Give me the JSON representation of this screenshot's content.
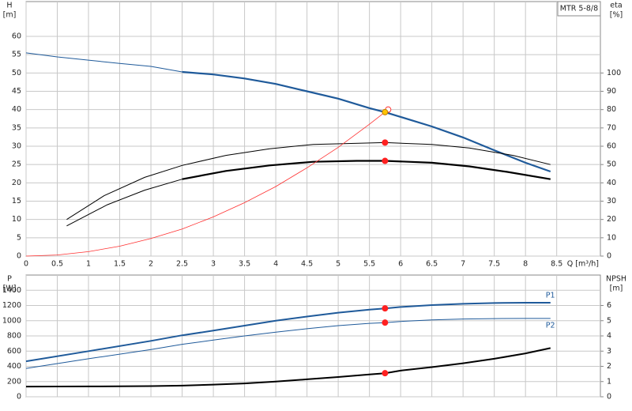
{
  "chart_data": [
    {
      "type": "line",
      "ylabel": [
        "H",
        "[m]"
      ],
      "y2label": [
        "eta",
        "[%]"
      ],
      "xlabel": "Q [m³/h]",
      "legend_title": "MTR 5-8/8",
      "xlim": [
        0,
        9.2
      ],
      "xticks": [
        0,
        0.5,
        1.0,
        1.5,
        2.0,
        2.5,
        3.0,
        3.5,
        4.0,
        4.5,
        5.0,
        5.5,
        6.0,
        6.5,
        7.0,
        7.5,
        8.0,
        8.5
      ],
      "ylim": [
        0,
        69.5
      ],
      "yticks": [
        0,
        5,
        10,
        15,
        20,
        25,
        30,
        35,
        40,
        45,
        50,
        55,
        60
      ],
      "y2lim": [
        0,
        139
      ],
      "y2ticks": [
        0,
        10,
        20,
        30,
        40,
        50,
        60,
        70,
        80,
        90,
        100
      ],
      "grid": true,
      "series": [
        {
          "color": "#1f5a9a",
          "width": 1,
          "x": [
            0,
            0.5,
            1,
            1.5,
            2,
            2.5
          ],
          "values": [
            55.5,
            54.4,
            53.5,
            52.6,
            51.8,
            50.3
          ]
        },
        {
          "color": "#1f5a9a",
          "width": 2.2,
          "x": [
            2.5,
            3,
            3.5,
            4,
            4.5,
            5,
            5.5,
            5.75,
            6,
            6.5,
            7,
            7.5,
            8,
            8.4
          ],
          "values": [
            50.3,
            49.6,
            48.5,
            47,
            45,
            43,
            40.4,
            39.3,
            38,
            35.4,
            32.4,
            28.9,
            25.5,
            23.1
          ]
        },
        {
          "color": "#000000",
          "width": 1,
          "axis": "y2",
          "x": [
            0.65,
            1.25,
            1.9,
            2.5,
            3.2,
            3.9,
            4.6,
            5.75,
            6.5,
            7.1,
            7.8,
            8.4
          ],
          "values": [
            20,
            33,
            43,
            49.5,
            55,
            58.6,
            61,
            62,
            61,
            59,
            55,
            50
          ]
        },
        {
          "color": "#000000",
          "width": 1,
          "axis": "y2",
          "x": [
            0.65,
            1.3,
            1.9,
            2.5
          ],
          "values": [
            16.5,
            28,
            36,
            42
          ]
        },
        {
          "color": "#000000",
          "width": 2.2,
          "axis": "y2",
          "x": [
            2.5,
            3.2,
            3.9,
            4.6,
            5.3,
            5.75,
            6.5,
            7.1,
            7.7,
            8.4
          ],
          "values": [
            42,
            46.5,
            49.5,
            51.5,
            52,
            52,
            51,
            49,
            46,
            42
          ]
        },
        {
          "color": "#ff3030",
          "width": 0.8,
          "x": [
            0,
            0.5,
            1,
            1.5,
            2,
            2.5,
            3,
            3.5,
            4,
            4.5,
            5,
            5.5,
            5.8
          ],
          "values": [
            0,
            0.3,
            1.2,
            2.7,
            4.8,
            7.4,
            10.7,
            14.6,
            19,
            24.1,
            29.7,
            36,
            40
          ]
        }
      ],
      "markers": [
        {
          "x": 5.8,
          "y": 40,
          "color": "#ff3030",
          "style": "open"
        },
        {
          "x": 5.75,
          "y": 39.3,
          "color": "#ffc400",
          "style": "filled"
        },
        {
          "x": 5.75,
          "y": 31,
          "color": "#ff2020",
          "style": "filled"
        },
        {
          "x": 5.75,
          "y": 26,
          "color": "#ff2020",
          "style": "filled"
        }
      ]
    },
    {
      "type": "line",
      "ylabel": [
        "P",
        "[W]"
      ],
      "y2label": [
        "NPSH",
        "[m]"
      ],
      "xlim": [
        0,
        9.2
      ],
      "xticks": [
        0,
        0.5,
        1.0,
        1.5,
        2.0,
        2.5,
        3.0,
        3.5,
        4.0,
        4.5,
        5.0,
        5.5,
        6.0,
        6.5,
        7.0,
        7.5,
        8.0,
        8.5
      ],
      "ylim": [
        0,
        1600
      ],
      "yticks": [
        0,
        200,
        400,
        600,
        800,
        1000,
        1200,
        1400
      ],
      "y2lim": [
        0,
        8
      ],
      "y2ticks": [
        0,
        1,
        2,
        3,
        4,
        5,
        6
      ],
      "grid": true,
      "series": [
        {
          "name": "P1",
          "color": "#1f5a9a",
          "width": 2,
          "x": [
            0,
            1,
            2,
            2.5,
            3,
            3.5,
            4,
            4.5,
            5,
            5.5,
            5.75,
            6,
            6.5,
            7,
            7.5,
            8,
            8.4
          ],
          "values": [
            466,
            600,
            735,
            808,
            870,
            935,
            1000,
            1055,
            1105,
            1145,
            1162,
            1180,
            1205,
            1222,
            1232,
            1236,
            1236
          ]
        },
        {
          "name": "P2",
          "color": "#1f5a9a",
          "width": 1,
          "x": [
            0,
            1,
            2,
            2.5,
            3,
            3.5,
            4,
            4.5,
            5,
            5.5,
            5.75,
            6,
            6.5,
            7,
            7.5,
            8,
            8.4
          ],
          "values": [
            373,
            500,
            620,
            690,
            745,
            800,
            850,
            895,
            935,
            965,
            975,
            990,
            1010,
            1022,
            1028,
            1030,
            1030
          ]
        },
        {
          "color": "#000000",
          "width": 2,
          "axis": "y2",
          "x": [
            0,
            1,
            2,
            2.5,
            3,
            3.5,
            4,
            4.5,
            5,
            5.5,
            5.75,
            6,
            6.5,
            7,
            7.5,
            8,
            8.4
          ],
          "values": [
            0.67,
            0.68,
            0.7,
            0.73,
            0.8,
            0.88,
            1.0,
            1.15,
            1.3,
            1.47,
            1.55,
            1.72,
            1.95,
            2.2,
            2.5,
            2.85,
            3.2
          ]
        }
      ],
      "markers": [
        {
          "x": 5.75,
          "y": 1162,
          "color": "#ff2020",
          "style": "filled"
        },
        {
          "x": 5.75,
          "y": 975,
          "color": "#ff2020",
          "style": "filled"
        },
        {
          "x": 5.75,
          "y": 1.55,
          "color": "#ff2020",
          "style": "filled",
          "axis": "y2"
        }
      ]
    }
  ]
}
